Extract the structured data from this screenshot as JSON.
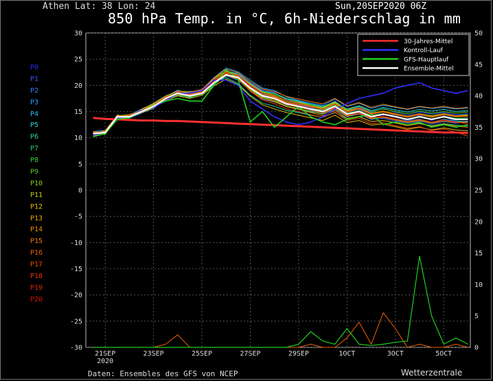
{
  "header": {
    "location": "Athen   Lat: 38 Lon: 24",
    "run_date": "Sun,20SEP2020 06Z",
    "title": "850 hPa Temp. in °C, 6h-Niederschlag in mm"
  },
  "footer": {
    "source": "Daten: Ensembles des GFS von NCEP",
    "brand": "Wetterzentrale"
  },
  "members": [
    {
      "label": "P0",
      "color": "#2a2aff"
    },
    {
      "label": "P1",
      "color": "#3a50ff"
    },
    {
      "label": "P2",
      "color": "#3a78ff"
    },
    {
      "label": "P3",
      "color": "#2aa0ff"
    },
    {
      "label": "P4",
      "color": "#20c0ff"
    },
    {
      "label": "P5",
      "color": "#20d8d0"
    },
    {
      "label": "P6",
      "color": "#20d8a0"
    },
    {
      "label": "P7",
      "color": "#20d070"
    },
    {
      "label": "P8",
      "color": "#30d040"
    },
    {
      "label": "P9",
      "color": "#50d020"
    },
    {
      "label": "P10",
      "color": "#80d010"
    },
    {
      "label": "P11",
      "color": "#c8d000"
    },
    {
      "label": "P12",
      "color": "#e0c000"
    },
    {
      "label": "P13",
      "color": "#e8a800"
    },
    {
      "label": "P14",
      "color": "#f09000"
    },
    {
      "label": "P15",
      "color": "#f07800"
    },
    {
      "label": "P16",
      "color": "#f06000"
    },
    {
      "label": "P17",
      "color": "#f04800"
    },
    {
      "label": "P18",
      "color": "#f03000"
    },
    {
      "label": "P19",
      "color": "#e82000"
    },
    {
      "label": "P20",
      "color": "#d81000"
    }
  ],
  "chart_data": {
    "type": "line",
    "title": "850 hPa Temp. in °C, 6h-Niederschlag in mm",
    "x_ticks": [
      {
        "label": "21SEP",
        "sub": "2020",
        "day": 1
      },
      {
        "label": "23SEP",
        "day": 3
      },
      {
        "label": "25SEP",
        "day": 5
      },
      {
        "label": "27SEP",
        "day": 7
      },
      {
        "label": "29SEP",
        "day": 9
      },
      {
        "label": "1OCT",
        "day": 11
      },
      {
        "label": "3OCT",
        "day": 13
      },
      {
        "label": "5OCT",
        "day": 15
      }
    ],
    "xlim_days": [
      0.2,
      16.1
    ],
    "y_left": {
      "ylim": [
        -30,
        30
      ],
      "ticks": [
        30,
        25,
        20,
        15,
        10,
        5,
        0,
        -5,
        -10,
        -15,
        -20,
        -25,
        -30
      ],
      "unit": "°C"
    },
    "y_right": {
      "ylim": [
        0,
        50
      ],
      "ticks": [
        50,
        45,
        40,
        35,
        30,
        25,
        20,
        15,
        10,
        5,
        0
      ],
      "unit": "mm"
    },
    "grid": true,
    "legend_position": "top-right",
    "legend": [
      {
        "label": "30-Jahres-Mittel",
        "color": "#ff3030"
      },
      {
        "label": "Kontroll-Lauf",
        "color": "#3030ff"
      },
      {
        "label": "GFS-Hauptlauf",
        "color": "#20d020"
      },
      {
        "label": "Ensemble-Mittel",
        "color": "#ffffff"
      }
    ],
    "days": [
      0.5,
      1,
      1.5,
      2,
      2.5,
      3,
      3.5,
      4,
      4.5,
      5,
      5.5,
      6,
      6.5,
      7,
      7.5,
      8,
      8.5,
      9,
      9.5,
      10,
      10.5,
      11,
      11.5,
      12,
      12.5,
      13,
      13.5,
      14,
      14.5,
      15,
      15.5,
      16
    ],
    "climate_mean": [
      13.8,
      13.6,
      13.5,
      13.4,
      13.3,
      13.3,
      13.2,
      13.2,
      13.1,
      13.0,
      12.9,
      12.8,
      12.7,
      12.6,
      12.5,
      12.4,
      12.3,
      12.2,
      12.1,
      12.0,
      11.9,
      11.8,
      11.7,
      11.6,
      11.5,
      11.4,
      11.3,
      11.2,
      11.1,
      11.0,
      11.0,
      10.9
    ],
    "ensemble_mean": [
      10.8,
      11.0,
      14.0,
      14.0,
      15.0,
      16.0,
      17.5,
      18.5,
      18.0,
      18.5,
      20.5,
      22.0,
      21.5,
      19.5,
      18.0,
      17.5,
      16.5,
      16.0,
      15.5,
      15.0,
      16.0,
      14.5,
      15.0,
      14.0,
      14.5,
      14.0,
      13.5,
      14.0,
      13.5,
      14.0,
      13.5,
      13.5
    ],
    "control_run": [
      10.5,
      11.0,
      13.8,
      14.0,
      15.2,
      15.8,
      17.0,
      18.5,
      18.5,
      19.0,
      21.0,
      21.0,
      20.0,
      17.0,
      15.5,
      14.0,
      13.0,
      12.5,
      13.0,
      14.0,
      15.5,
      16.5,
      17.5,
      18.0,
      18.5,
      19.5,
      20.0,
      20.5,
      19.5,
      19.0,
      18.5,
      19.0
    ],
    "gfs_main": [
      10.2,
      10.8,
      13.5,
      13.8,
      15.0,
      16.2,
      17.0,
      17.5,
      17.0,
      17.0,
      20.0,
      23.0,
      21.0,
      13.0,
      15.0,
      12.0,
      14.0,
      16.0,
      14.0,
      13.0,
      12.5,
      13.5,
      14.0,
      14.5,
      12.5,
      13.0,
      12.5,
      13.0,
      12.0,
      12.5,
      12.0,
      12.5
    ],
    "members_series": [
      [
        10.6,
        11.1,
        14.2,
        14.1,
        15.1,
        16.4,
        17.9,
        18.8,
        18.6,
        18.9,
        21.2,
        22.4,
        21.8,
        19.9,
        18.5,
        17.9,
        16.6,
        16.3,
        15.8,
        15.0,
        16.5,
        14.9,
        15.4,
        14.1,
        14.3,
        14.4,
        13.1,
        14.3,
        13.3,
        14.2,
        13.1,
        13.2
      ],
      [
        11.1,
        10.8,
        13.6,
        14.4,
        15.3,
        16.2,
        17.1,
        18.1,
        18.9,
        18.2,
        20.6,
        22.9,
        22.1,
        20.5,
        19.1,
        18.6,
        17.2,
        16.9,
        16.4,
        15.9,
        17.0,
        15.3,
        15.9,
        14.8,
        15.6,
        14.9,
        14.3,
        14.9,
        14.5,
        14.8,
        14.4,
        14.6
      ],
      [
        10.9,
        11.3,
        13.8,
        13.7,
        14.7,
        15.6,
        17.2,
        18.4,
        17.6,
        18.6,
        20.2,
        21.8,
        21.0,
        19.0,
        17.4,
        16.8,
        16.0,
        15.5,
        14.9,
        14.6,
        15.4,
        14.0,
        14.5,
        13.5,
        13.7,
        13.2,
        12.8,
        13.2,
        12.6,
        13.1,
        12.8,
        12.9
      ],
      [
        10.4,
        10.7,
        14.3,
        14.2,
        15.5,
        16.5,
        17.8,
        19.1,
        18.3,
        19.2,
        21.5,
        23.3,
        22.6,
        21.0,
        19.5,
        19.0,
        17.8,
        17.1,
        16.6,
        16.2,
        17.4,
        16.0,
        16.6,
        15.6,
        16.2,
        15.8,
        15.4,
        15.9,
        15.6,
        15.8,
        15.5,
        15.7
      ],
      [
        11.2,
        11.4,
        13.9,
        13.9,
        14.8,
        15.8,
        17.4,
        18.3,
        17.8,
        18.4,
        20.8,
        22.1,
        21.2,
        19.3,
        17.8,
        17.3,
        16.2,
        15.9,
        15.2,
        14.7,
        15.9,
        14.4,
        14.8,
        13.8,
        14.0,
        13.6,
        13.2,
        13.6,
        13.0,
        13.5,
        13.2,
        13.0
      ],
      [
        10.7,
        11.0,
        14.1,
        14.3,
        15.2,
        16.1,
        17.6,
        18.6,
        18.2,
        18.7,
        20.9,
        22.6,
        22.3,
        20.4,
        18.9,
        18.5,
        17.5,
        17.0,
        16.4,
        16.0,
        16.8,
        15.5,
        16.1,
        15.2,
        15.8,
        15.3,
        14.9,
        15.4,
        15.1,
        15.4,
        15.0,
        15.2
      ],
      [
        10.5,
        11.2,
        13.7,
        14.0,
        15.0,
        16.3,
        17.3,
        18.0,
        17.9,
        18.5,
        20.4,
        21.5,
        20.3,
        18.1,
        16.6,
        16.0,
        15.2,
        14.8,
        14.3,
        13.9,
        14.8,
        13.6,
        14.0,
        13.1,
        13.3,
        12.9,
        12.5,
        12.8,
        12.3,
        12.7,
        12.4,
        12.2
      ],
      [
        11.0,
        10.9,
        14.4,
        13.8,
        15.4,
        16.6,
        18.0,
        18.9,
        18.8,
        19.1,
        21.3,
        22.8,
        21.6,
        19.6,
        18.2,
        17.6,
        16.5,
        16.1,
        15.6,
        15.3,
        16.2,
        14.7,
        15.2,
        14.3,
        14.6,
        14.1,
        13.6,
        14.1,
        13.6,
        14.1,
        13.7,
        13.8
      ],
      [
        10.8,
        11.1,
        13.5,
        14.2,
        14.9,
        15.9,
        17.0,
        18.2,
        17.7,
        18.3,
        20.1,
        21.9,
        21.4,
        19.8,
        18.4,
        17.9,
        17.0,
        16.6,
        16.1,
        15.6,
        16.6,
        15.1,
        15.6,
        14.6,
        15.0,
        14.5,
        14.0,
        14.5,
        14.1,
        14.5,
        14.1,
        14.3
      ],
      [
        10.6,
        11.3,
        14.0,
        14.1,
        15.3,
        16.2,
        17.7,
        18.7,
        18.4,
        18.8,
        21.0,
        22.3,
        21.9,
        20.1,
        18.8,
        18.3,
        17.4,
        16.8,
        16.3,
        15.8,
        16.9,
        15.4,
        16.0,
        15.0,
        15.5,
        15.0,
        14.6,
        15.1,
        14.7,
        15.0,
        14.7,
        14.9
      ],
      [
        11.1,
        10.6,
        13.9,
        14.0,
        15.1,
        16.0,
        17.5,
        18.5,
        18.1,
        18.6,
        20.7,
        22.2,
        21.3,
        19.2,
        17.7,
        17.1,
        16.0,
        15.6,
        15.0,
        14.5,
        15.6,
        14.1,
        14.6,
        13.6,
        14.0,
        13.5,
        13.0,
        13.4,
        12.9,
        13.4,
        13.0,
        13.1
      ],
      [
        10.3,
        11.0,
        14.2,
        14.4,
        15.2,
        16.4,
        17.8,
        18.9,
        18.5,
        19.0,
        21.4,
        22.7,
        22.0,
        20.2,
        18.7,
        18.1,
        17.1,
        16.7,
        16.1,
        15.7,
        16.7,
        15.2,
        15.7,
        14.7,
        15.1,
        14.6,
        14.1,
        14.6,
        14.2,
        14.6,
        14.2,
        14.4
      ],
      [
        10.9,
        11.2,
        13.6,
        13.9,
        14.8,
        15.7,
        17.1,
        18.0,
        17.5,
        18.1,
        19.9,
        21.2,
        20.1,
        17.9,
        16.3,
        15.5,
        14.8,
        14.3,
        13.8,
        13.3,
        14.3,
        12.9,
        13.3,
        12.4,
        12.6,
        12.1,
        11.6,
        12.0,
        11.5,
        11.9,
        11.5,
        11.3
      ],
      [
        10.7,
        10.9,
        14.1,
        14.2,
        15.3,
        16.3,
        17.6,
        18.6,
        18.3,
        18.8,
        21.1,
        22.5,
        21.7,
        19.7,
        18.3,
        17.8,
        16.8,
        16.4,
        15.9,
        15.4,
        16.4,
        14.9,
        15.5,
        14.5,
        14.9,
        14.4,
        13.9,
        14.4,
        13.9,
        14.4,
        14.0,
        14.1
      ],
      [
        11.0,
        11.1,
        13.8,
        14.1,
        15.0,
        16.1,
        17.4,
        18.4,
        18.0,
        18.5,
        20.6,
        22.0,
        21.1,
        19.0,
        17.5,
        16.9,
        15.9,
        15.4,
        14.8,
        14.2,
        15.2,
        13.7,
        14.1,
        13.1,
        13.3,
        12.8,
        12.3,
        12.7,
        12.2,
        12.6,
        12.2,
        12.0
      ],
      [
        10.5,
        11.4,
        14.3,
        14.0,
        15.4,
        16.5,
        17.9,
        18.9,
        18.7,
        19.2,
        21.4,
        23.1,
        22.4,
        20.7,
        19.3,
        18.8,
        17.9,
        17.4,
        16.9,
        16.5,
        17.5,
        16.1,
        16.7,
        15.8,
        16.4,
        15.9,
        15.5,
        16.0,
        15.7,
        16.0,
        15.6,
        15.8
      ],
      [
        10.8,
        10.8,
        13.7,
        14.3,
        15.1,
        15.9,
        17.3,
        18.3,
        17.9,
        18.4,
        20.5,
        21.9,
        21.5,
        19.5,
        17.9,
        17.3,
        16.3,
        15.8,
        15.3,
        14.7,
        15.7,
        14.2,
        14.6,
        13.7,
        13.9,
        13.4,
        12.9,
        13.3,
        12.8,
        13.2,
        12.9,
        12.9
      ],
      [
        11.2,
        11.0,
        14.0,
        13.8,
        15.2,
        16.2,
        17.6,
        18.5,
        18.2,
        18.6,
        20.8,
        22.3,
        21.2,
        18.9,
        17.2,
        16.5,
        15.5,
        15.0,
        14.4,
        13.9,
        14.9,
        13.3,
        13.7,
        12.7,
        12.9,
        12.3,
        11.8,
        12.1,
        11.4,
        11.7,
        11.1,
        10.3
      ],
      [
        10.4,
        11.2,
        14.1,
        14.2,
        15.0,
        16.0,
        17.5,
        18.7,
        18.4,
        18.9,
        21.1,
        22.6,
        21.9,
        20.0,
        18.6,
        18.0,
        17.1,
        16.6,
        16.0,
        15.5,
        16.5,
        15.0,
        15.6,
        14.6,
        15.0,
        14.5,
        14.0,
        14.5,
        14.0,
        14.5,
        14.1,
        14.2
      ],
      [
        10.9,
        10.9,
        13.9,
        14.1,
        14.9,
        16.1,
        17.4,
        18.4,
        18.1,
        18.7,
        20.9,
        22.4,
        21.6,
        19.8,
        18.3,
        17.7,
        16.7,
        16.2,
        15.6,
        15.1,
        16.1,
        14.6,
        15.1,
        14.2,
        14.5,
        14.0,
        13.5,
        14.0,
        13.5,
        13.9,
        13.5,
        13.6
      ],
      [
        10.6,
        11.1,
        14.0,
        14.0,
        15.1,
        16.2,
        17.7,
        18.6,
        18.1,
        18.6,
        20.7,
        22.0,
        21.4,
        19.4,
        17.9,
        17.4,
        16.4,
        15.9,
        15.4,
        14.9,
        15.8,
        14.3,
        14.8,
        13.8,
        14.1,
        13.6,
        13.1,
        13.5,
        13.0,
        13.4,
        13.0,
        12.6
      ]
    ],
    "precip_main": [
      0,
      0,
      0,
      0,
      0,
      0,
      0,
      0,
      0,
      0,
      0,
      0,
      0,
      0,
      0,
      0,
      0,
      0.5,
      2.5,
      1.0,
      0.5,
      3.0,
      0.5,
      0.3,
      0.5,
      0.8,
      1.0,
      14.5,
      5.0,
      0.5,
      1.5,
      0.5
    ],
    "precip_member": [
      0,
      0,
      0,
      0,
      0,
      0,
      0.5,
      2.0,
      0,
      0,
      0,
      0,
      0,
      0,
      0,
      0,
      0,
      0,
      0.5,
      0,
      0,
      1.5,
      4.0,
      0.5,
      5.5,
      3.0,
      0,
      0.5,
      0,
      0,
      0.5,
      0
    ]
  }
}
